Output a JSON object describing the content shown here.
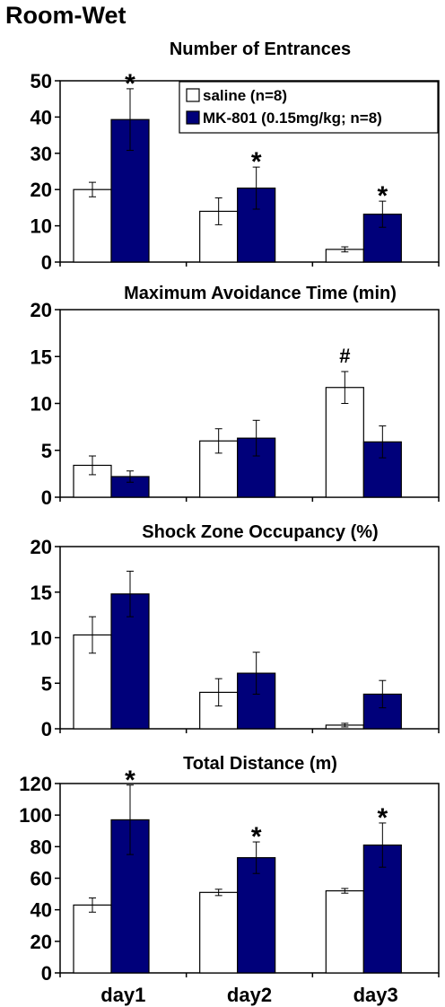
{
  "figure_title": "Room-Wet",
  "legend": {
    "saline": "saline (n=8)",
    "mk801": "MK-801 (0.15mg/kg; n=8)"
  },
  "colors": {
    "saline": "#ffffff",
    "mk801": "#00007a",
    "axis": "#000000"
  },
  "chart_data": [
    {
      "type": "bar",
      "title": "Number of Entrances",
      "categories": [
        "day1",
        "day2",
        "day3"
      ],
      "series": [
        {
          "name": "saline (n=8)",
          "values": [
            20,
            14,
            3.5
          ],
          "errors": [
            2,
            3.7,
            0.7
          ]
        },
        {
          "name": "MK-801 (0.15mg/kg; n=8)",
          "values": [
            39.3,
            20.4,
            13.2
          ],
          "errors": [
            8.5,
            5.8,
            3.6
          ]
        }
      ],
      "ylim": [
        0,
        50
      ],
      "yticks": [
        0,
        10,
        20,
        30,
        40,
        50
      ],
      "annotations": [
        {
          "category": "day1",
          "series": 1,
          "text": "*"
        },
        {
          "category": "day2",
          "series": 1,
          "text": "*"
        },
        {
          "category": "day3",
          "series": 1,
          "text": "*"
        }
      ],
      "legend_position": "top-right",
      "grid": false
    },
    {
      "type": "bar",
      "title": "Maximum Avoidance Time (min)",
      "categories": [
        "day1",
        "day2",
        "day3"
      ],
      "series": [
        {
          "name": "saline (n=8)",
          "values": [
            3.4,
            6.0,
            11.7
          ],
          "errors": [
            1.0,
            1.3,
            1.7
          ]
        },
        {
          "name": "MK-801 (0.15mg/kg; n=8)",
          "values": [
            2.2,
            6.3,
            5.9
          ],
          "errors": [
            0.6,
            1.9,
            1.7
          ]
        }
      ],
      "ylim": [
        0,
        20
      ],
      "yticks": [
        0,
        5,
        10,
        15,
        20
      ],
      "annotations": [
        {
          "category": "day3",
          "series": 0,
          "text": "#"
        }
      ],
      "grid": false
    },
    {
      "type": "bar",
      "title": "Shock Zone Occupancy (%)",
      "categories": [
        "day1",
        "day2",
        "day3"
      ],
      "series": [
        {
          "name": "saline (n=8)",
          "values": [
            10.3,
            4.0,
            0.4
          ],
          "errors": [
            2.0,
            1.5,
            0.2
          ]
        },
        {
          "name": "MK-801 (0.15mg/kg; n=8)",
          "values": [
            14.8,
            6.1,
            3.8
          ],
          "errors": [
            2.5,
            2.3,
            1.5
          ]
        }
      ],
      "ylim": [
        0,
        20
      ],
      "yticks": [
        0,
        5,
        10,
        15,
        20
      ],
      "annotations": [],
      "grid": false
    },
    {
      "type": "bar",
      "title": "Total Distance (m)",
      "categories": [
        "day1",
        "day2",
        "day3"
      ],
      "series": [
        {
          "name": "saline (n=8)",
          "values": [
            43,
            51,
            52
          ],
          "errors": [
            4.5,
            2.0,
            1.5
          ]
        },
        {
          "name": "MK-801 (0.15mg/kg; n=8)",
          "values": [
            97,
            73,
            81
          ],
          "errors": [
            22,
            10,
            14
          ]
        }
      ],
      "ylim": [
        0,
        120
      ],
      "yticks": [
        0,
        20,
        40,
        60,
        80,
        100,
        120
      ],
      "annotations": [
        {
          "category": "day1",
          "series": 1,
          "text": "*"
        },
        {
          "category": "day2",
          "series": 1,
          "text": "*"
        },
        {
          "category": "day3",
          "series": 1,
          "text": "*"
        }
      ],
      "grid": false
    }
  ]
}
